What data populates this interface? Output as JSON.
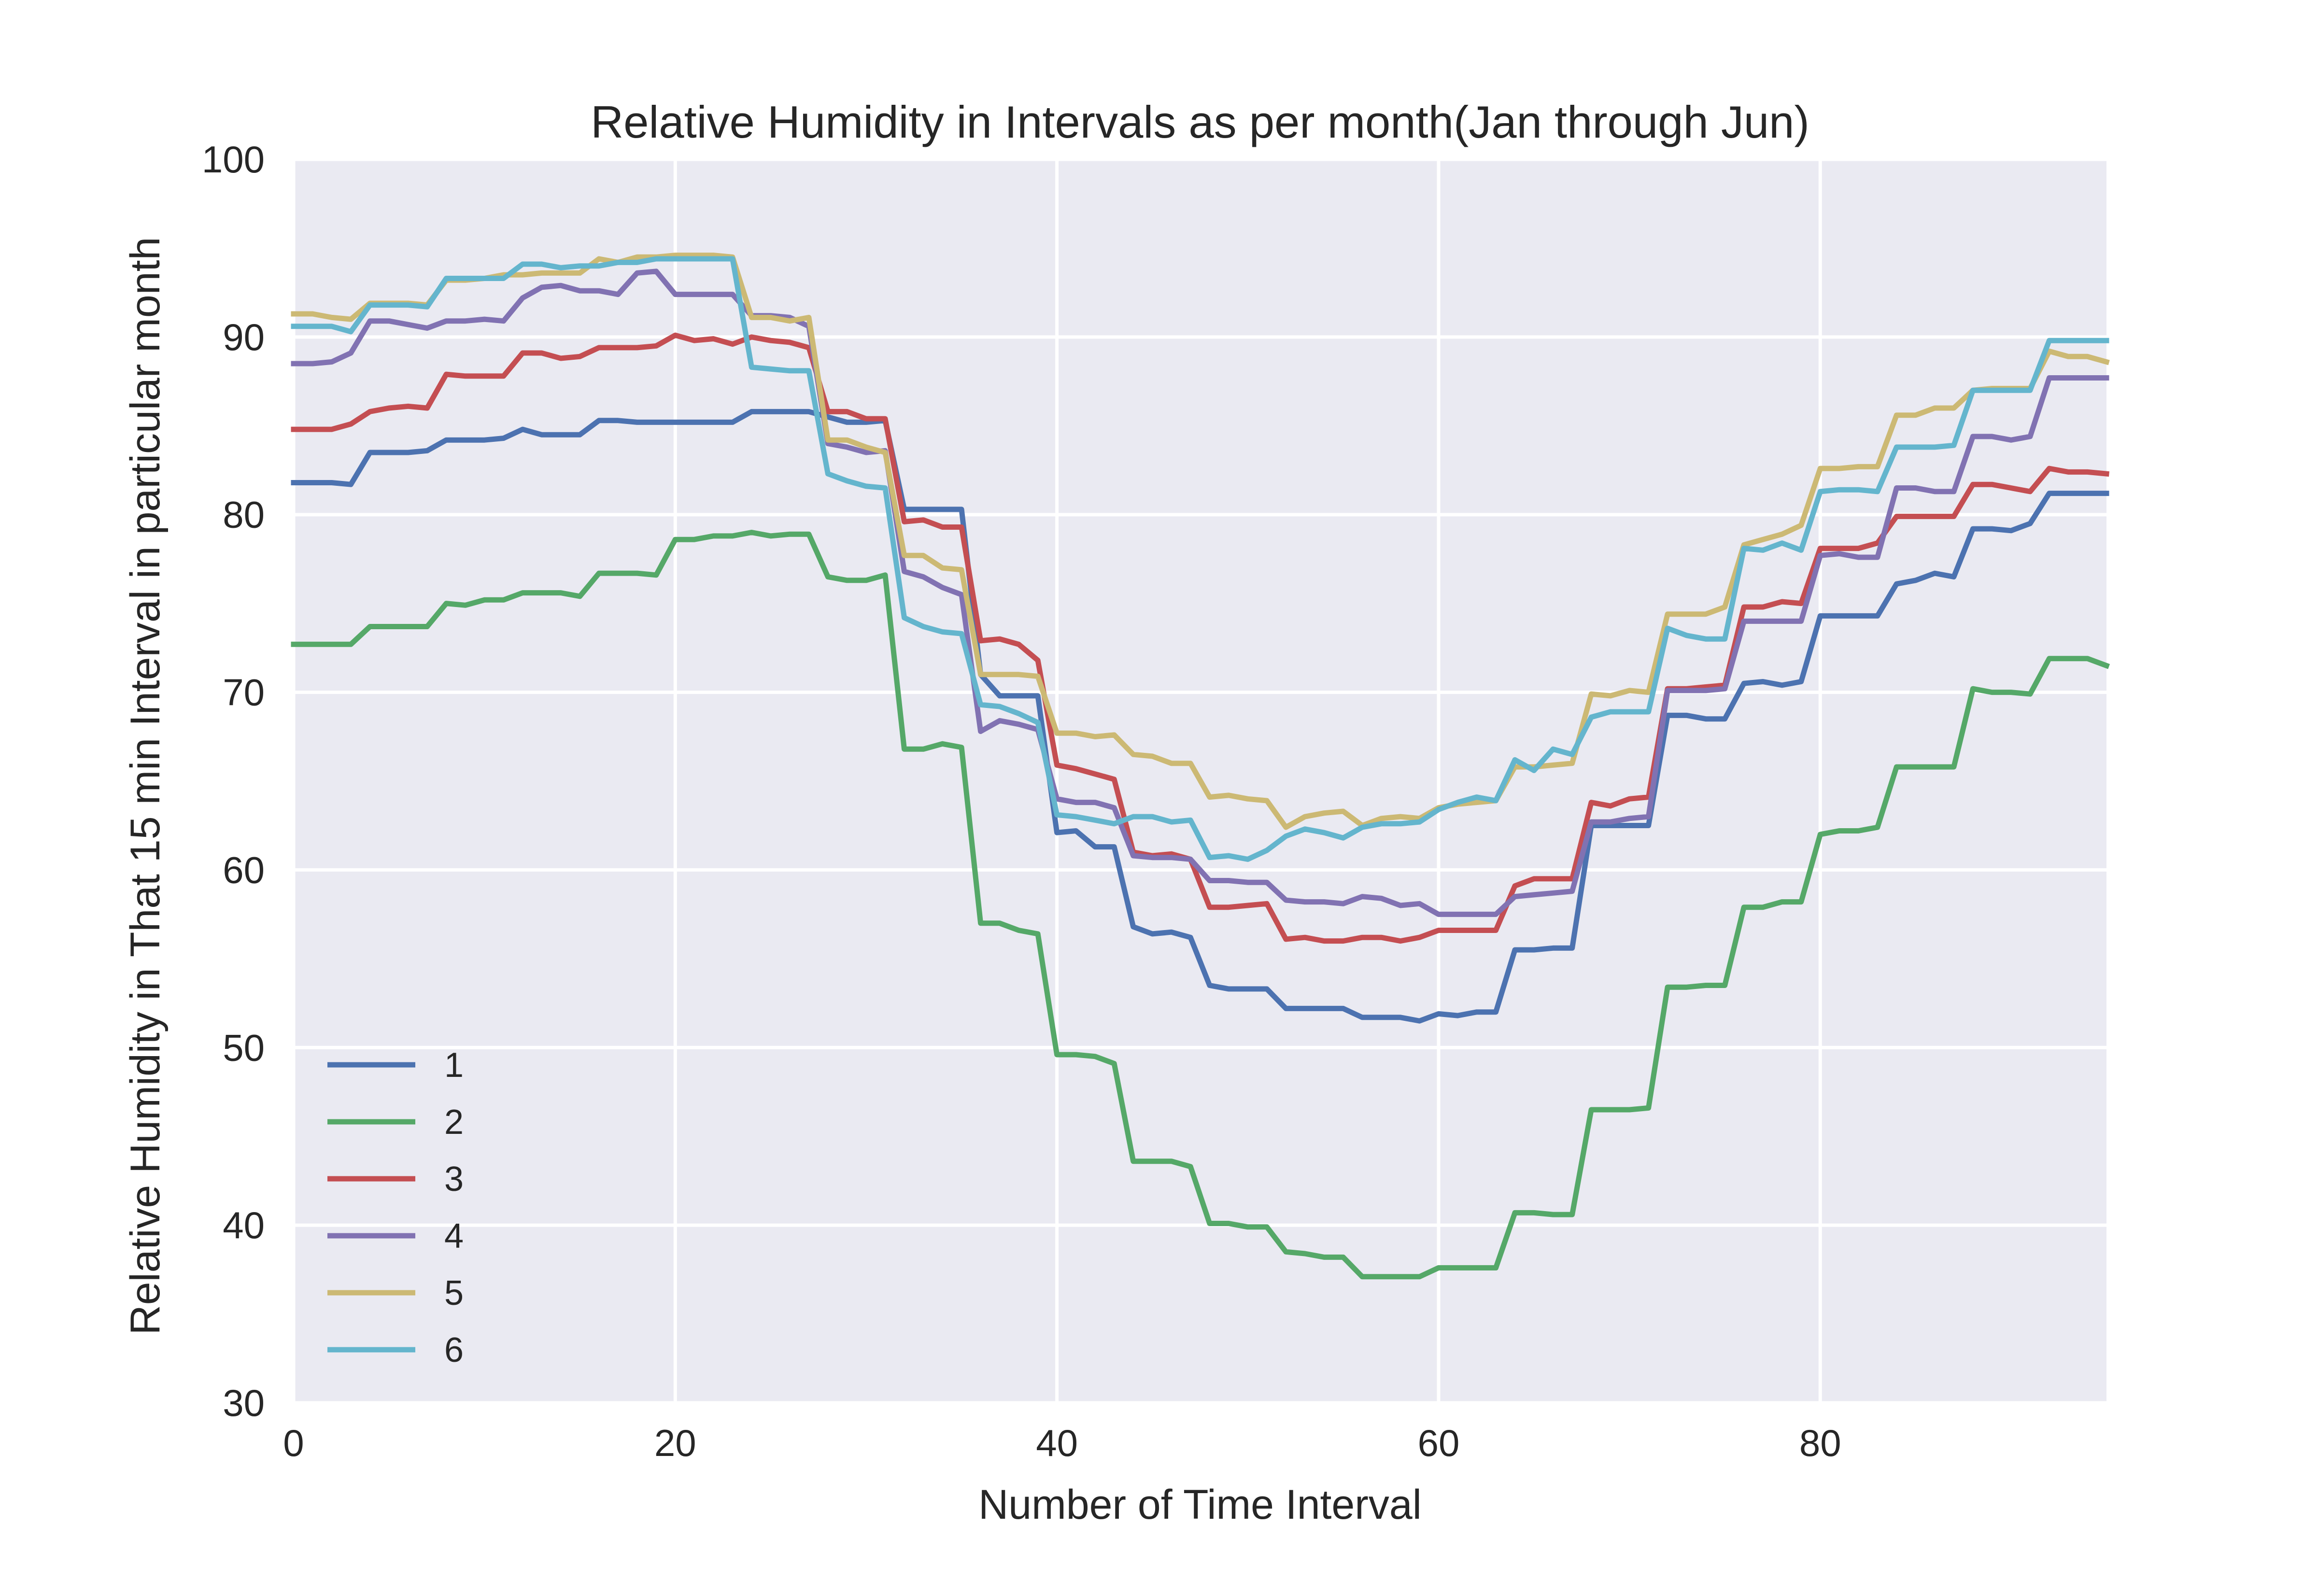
{
  "chart_data": {
    "type": "line",
    "title": "Relative Humidity in Intervals as per month(Jan through Jun)",
    "xlabel": "Number of Time Interval",
    "ylabel": "Relative Humidity in That 15 min Interval in particular month",
    "xlim": [
      0,
      95
    ],
    "ylim": [
      30,
      100
    ],
    "xticks": [
      0,
      20,
      40,
      60,
      80
    ],
    "xtick_labels": [
      "0",
      "20",
      "40",
      "60",
      "80"
    ],
    "yticks": [
      30,
      40,
      50,
      60,
      70,
      80,
      90,
      100
    ],
    "ytick_labels": [
      "30",
      "40",
      "50",
      "60",
      "70",
      "80",
      "90",
      "100"
    ],
    "grid": true,
    "legend_position": "lower-left",
    "x": [
      0,
      1,
      2,
      3,
      4,
      5,
      6,
      7,
      8,
      9,
      10,
      11,
      12,
      13,
      14,
      15,
      16,
      17,
      18,
      19,
      20,
      21,
      22,
      23,
      24,
      25,
      26,
      27,
      28,
      29,
      30,
      31,
      32,
      33,
      34,
      35,
      36,
      37,
      38,
      39,
      40,
      41,
      42,
      43,
      44,
      45,
      46,
      47,
      48,
      49,
      50,
      51,
      52,
      53,
      54,
      55,
      56,
      57,
      58,
      59,
      60,
      61,
      62,
      63,
      64,
      65,
      66,
      67,
      68,
      69,
      70,
      71,
      72,
      73,
      74,
      75,
      76,
      77,
      78,
      79,
      80,
      81,
      82,
      83,
      84,
      85,
      86,
      87,
      88,
      89,
      90,
      91,
      92,
      93,
      94,
      95
    ],
    "series": [
      {
        "name": "1",
        "color": "#4C72B0",
        "values": [
          81.8,
          81.8,
          81.8,
          81.7,
          83.5,
          83.5,
          83.5,
          83.6,
          84.2,
          84.2,
          84.2,
          84.3,
          84.8,
          84.5,
          84.5,
          84.5,
          85.3,
          85.3,
          85.2,
          85.2,
          85.2,
          85.2,
          85.2,
          85.2,
          85.8,
          85.8,
          85.8,
          85.8,
          85.5,
          85.2,
          85.2,
          85.3,
          80.3,
          80.3,
          80.3,
          80.3,
          71.0,
          69.8,
          69.8,
          69.8,
          62.1,
          62.2,
          61.3,
          61.3,
          56.8,
          56.4,
          56.5,
          56.2,
          53.5,
          53.3,
          53.3,
          53.3,
          52.2,
          52.2,
          52.2,
          52.2,
          51.7,
          51.7,
          51.7,
          51.5,
          51.9,
          51.8,
          52.0,
          52.0,
          55.5,
          55.5,
          55.6,
          55.6,
          62.5,
          62.5,
          62.5,
          62.5,
          68.7,
          68.7,
          68.5,
          68.5,
          70.5,
          70.6,
          70.4,
          70.6,
          74.3,
          74.3,
          74.3,
          74.3,
          76.1,
          76.3,
          76.7,
          76.5,
          79.2,
          79.2,
          79.1,
          79.5,
          81.2,
          81.2,
          81.2,
          81.2
        ]
      },
      {
        "name": "2",
        "color": "#55A868",
        "values": [
          72.7,
          72.7,
          72.7,
          72.7,
          73.7,
          73.7,
          73.7,
          73.7,
          75.0,
          74.9,
          75.2,
          75.2,
          75.6,
          75.6,
          75.6,
          75.4,
          76.7,
          76.7,
          76.7,
          76.6,
          78.6,
          78.6,
          78.8,
          78.8,
          79.0,
          78.8,
          78.9,
          78.9,
          76.5,
          76.3,
          76.3,
          76.6,
          66.8,
          66.8,
          67.1,
          66.9,
          57.0,
          57.0,
          56.6,
          56.4,
          49.6,
          49.6,
          49.5,
          49.1,
          43.6,
          43.6,
          43.6,
          43.3,
          40.1,
          40.1,
          39.9,
          39.9,
          38.5,
          38.4,
          38.2,
          38.2,
          37.1,
          37.1,
          37.1,
          37.1,
          37.6,
          37.6,
          37.6,
          37.6,
          40.7,
          40.7,
          40.6,
          40.6,
          46.5,
          46.5,
          46.5,
          46.6,
          53.4,
          53.4,
          53.5,
          53.5,
          57.9,
          57.9,
          58.2,
          58.2,
          62.0,
          62.2,
          62.2,
          62.4,
          65.8,
          65.8,
          65.8,
          65.8,
          70.2,
          70.0,
          70.0,
          69.9,
          71.9,
          71.9,
          71.9,
          71.5
        ]
      },
      {
        "name": "3",
        "color": "#C44E52",
        "values": [
          84.8,
          84.8,
          84.8,
          85.1,
          85.8,
          86.0,
          86.1,
          86.0,
          87.9,
          87.8,
          87.8,
          87.8,
          89.1,
          89.1,
          88.8,
          88.9,
          89.4,
          89.4,
          89.4,
          89.5,
          90.1,
          89.8,
          89.9,
          89.6,
          90.0,
          89.8,
          89.7,
          89.4,
          85.8,
          85.8,
          85.4,
          85.4,
          79.6,
          79.7,
          79.3,
          79.3,
          72.9,
          73.0,
          72.7,
          71.8,
          65.9,
          65.7,
          65.4,
          65.1,
          61.0,
          60.8,
          60.9,
          60.6,
          57.9,
          57.9,
          58.0,
          58.1,
          56.1,
          56.2,
          56.0,
          56.0,
          56.2,
          56.2,
          56.0,
          56.2,
          56.6,
          56.6,
          56.6,
          56.6,
          59.1,
          59.5,
          59.5,
          59.5,
          63.8,
          63.6,
          64.0,
          64.1,
          70.2,
          70.2,
          70.3,
          70.4,
          74.8,
          74.8,
          75.1,
          75.0,
          78.1,
          78.1,
          78.1,
          78.4,
          79.9,
          79.9,
          79.9,
          79.9,
          81.7,
          81.7,
          81.5,
          81.3,
          82.6,
          82.4,
          82.4,
          82.3
        ]
      },
      {
        "name": "4",
        "color": "#8172B2",
        "values": [
          88.5,
          88.5,
          88.6,
          89.1,
          90.9,
          90.9,
          90.7,
          90.5,
          90.9,
          90.9,
          91.0,
          90.9,
          92.2,
          92.8,
          92.9,
          92.6,
          92.6,
          92.4,
          93.6,
          93.7,
          92.4,
          92.4,
          92.4,
          92.4,
          91.2,
          91.2,
          91.1,
          90.6,
          84.0,
          83.8,
          83.5,
          83.6,
          76.8,
          76.5,
          75.9,
          75.5,
          67.8,
          68.4,
          68.2,
          67.9,
          64.0,
          63.8,
          63.8,
          63.5,
          60.8,
          60.7,
          60.7,
          60.6,
          59.4,
          59.4,
          59.3,
          59.3,
          58.3,
          58.2,
          58.2,
          58.1,
          58.5,
          58.4,
          58.0,
          58.1,
          57.5,
          57.5,
          57.5,
          57.5,
          58.5,
          58.6,
          58.7,
          58.8,
          62.7,
          62.7,
          62.9,
          63.0,
          70.1,
          70.1,
          70.1,
          70.2,
          74.0,
          74.0,
          74.0,
          74.0,
          77.7,
          77.8,
          77.6,
          77.6,
          81.5,
          81.5,
          81.3,
          81.3,
          84.4,
          84.4,
          84.2,
          84.4,
          87.7,
          87.7,
          87.7,
          87.7
        ]
      },
      {
        "name": "5",
        "color": "#CCB974",
        "values": [
          91.3,
          91.3,
          91.1,
          91.0,
          91.9,
          91.9,
          91.9,
          91.8,
          93.2,
          93.2,
          93.3,
          93.5,
          93.5,
          93.6,
          93.6,
          93.6,
          94.4,
          94.2,
          94.5,
          94.5,
          94.6,
          94.6,
          94.6,
          94.5,
          91.1,
          91.1,
          90.9,
          91.1,
          84.2,
          84.2,
          83.8,
          83.5,
          77.7,
          77.7,
          77.0,
          76.9,
          71.0,
          71.0,
          71.0,
          70.9,
          67.7,
          67.7,
          67.5,
          67.6,
          66.5,
          66.4,
          66.0,
          66.0,
          64.1,
          64.2,
          64.0,
          63.9,
          62.4,
          63.0,
          63.2,
          63.3,
          62.5,
          62.9,
          63.0,
          62.9,
          63.5,
          63.7,
          63.8,
          63.9,
          65.8,
          65.8,
          65.9,
          66.0,
          69.9,
          69.8,
          70.1,
          70.0,
          74.4,
          74.4,
          74.4,
          74.8,
          78.3,
          78.6,
          78.9,
          79.4,
          82.6,
          82.6,
          82.7,
          82.7,
          85.6,
          85.6,
          86.0,
          86.0,
          87.0,
          87.1,
          87.1,
          87.1,
          89.2,
          88.9,
          88.9,
          88.6
        ]
      },
      {
        "name": "6",
        "color": "#64B5CD",
        "values": [
          90.6,
          90.6,
          90.6,
          90.3,
          91.8,
          91.8,
          91.8,
          91.7,
          93.3,
          93.3,
          93.3,
          93.3,
          94.1,
          94.1,
          93.9,
          94.0,
          94.0,
          94.2,
          94.2,
          94.4,
          94.4,
          94.4,
          94.4,
          94.4,
          88.3,
          88.2,
          88.1,
          88.1,
          82.3,
          81.9,
          81.6,
          81.5,
          74.2,
          73.7,
          73.4,
          73.3,
          69.3,
          69.2,
          68.8,
          68.3,
          63.1,
          63.0,
          62.8,
          62.6,
          63.0,
          63.0,
          62.7,
          62.8,
          60.7,
          60.8,
          60.6,
          61.1,
          61.9,
          62.3,
          62.1,
          61.8,
          62.4,
          62.6,
          62.6,
          62.7,
          63.4,
          63.8,
          64.1,
          63.9,
          66.2,
          65.6,
          66.8,
          66.5,
          68.6,
          68.9,
          68.9,
          68.9,
          73.6,
          73.2,
          73.0,
          73.0,
          78.1,
          78.0,
          78.4,
          78.0,
          81.3,
          81.4,
          81.4,
          81.3,
          83.8,
          83.8,
          83.8,
          83.9,
          87.0,
          87.0,
          87.0,
          87.0,
          89.8,
          89.8,
          89.8,
          89.8
        ]
      }
    ]
  }
}
